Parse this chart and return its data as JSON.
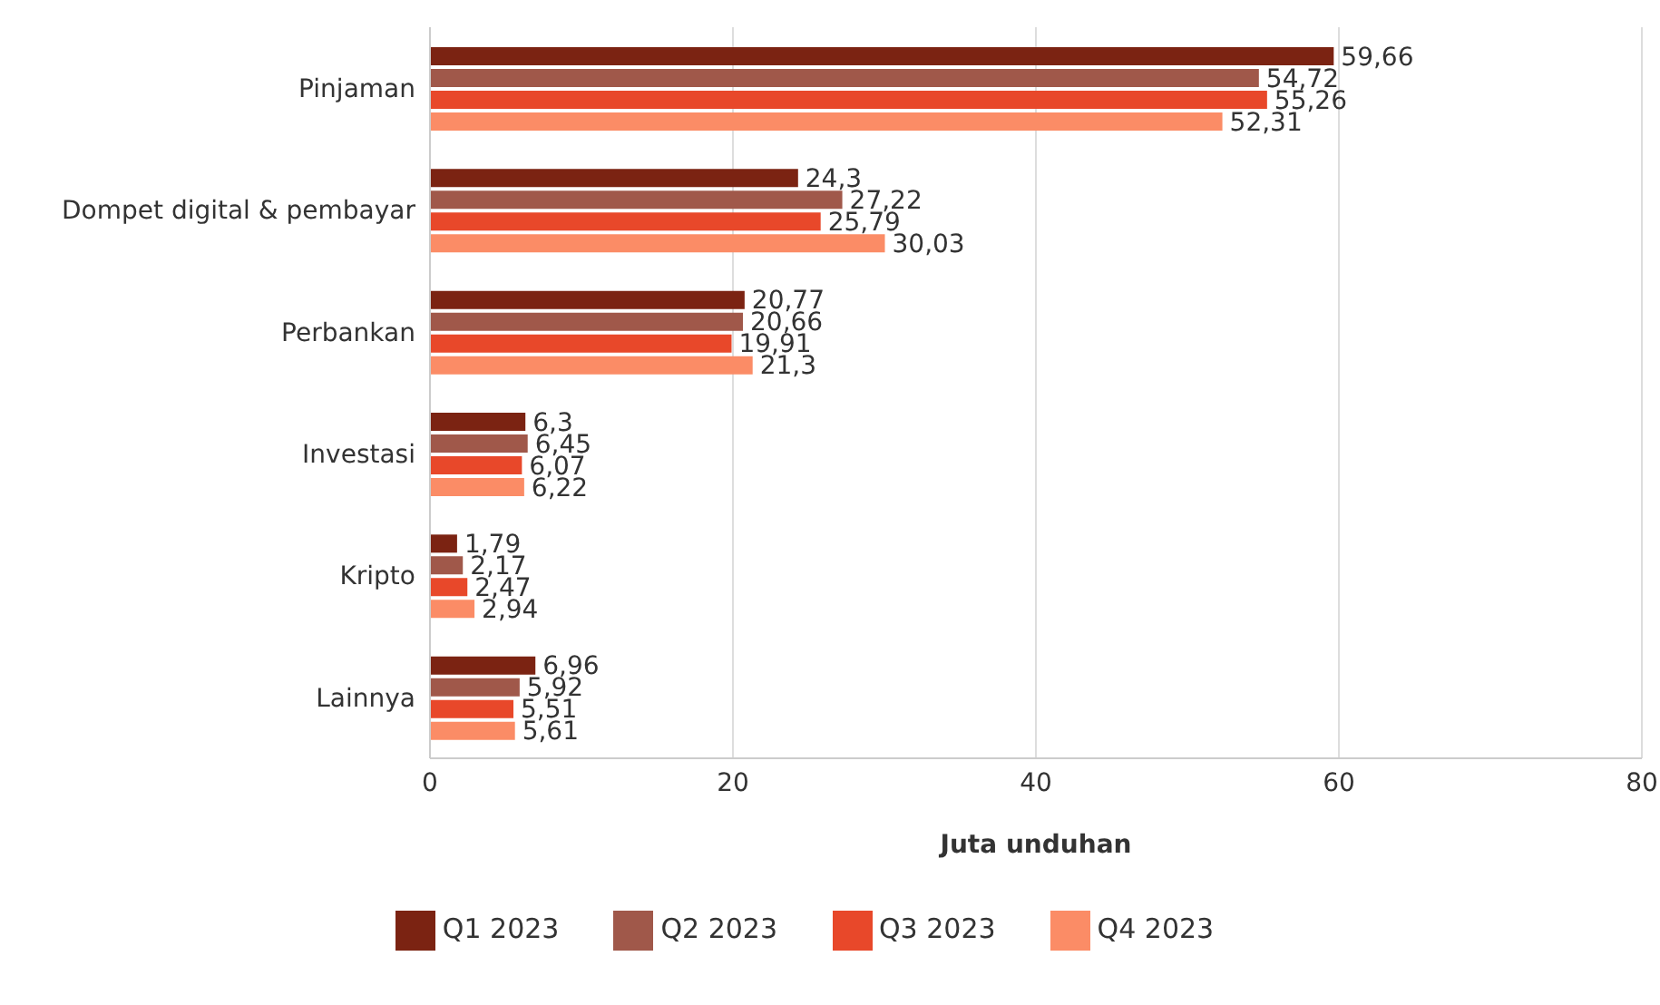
{
  "chart_data": {
    "type": "bar",
    "orientation": "horizontal",
    "xlabel": "Juta unduhan",
    "categories": [
      "Pinjaman",
      "Dompet digital & pembayar",
      "Perbankan",
      "Investasi",
      "Kripto",
      "Lainnya"
    ],
    "series": [
      {
        "name": "Q1 2023",
        "color": "#7b2312",
        "values": [
          59.66,
          24.3,
          20.77,
          6.3,
          1.79,
          6.96
        ],
        "value_labels": [
          "59,66",
          "24,3",
          "20,77",
          "6,3",
          "1,79",
          "6,96"
        ]
      },
      {
        "name": "Q2 2023",
        "color": "#a0584a",
        "values": [
          54.72,
          27.22,
          20.66,
          6.45,
          2.17,
          5.92
        ],
        "value_labels": [
          "54,72",
          "27,22",
          "20,66",
          "6,45",
          "2,17",
          "5,92"
        ]
      },
      {
        "name": "Q3 2023",
        "color": "#e8482a",
        "values": [
          55.26,
          25.79,
          19.91,
          6.07,
          2.47,
          5.51
        ],
        "value_labels": [
          "55,26",
          "25,79",
          "19,91",
          "6,07",
          "2,47",
          "5,51"
        ]
      },
      {
        "name": "Q4 2023",
        "color": "#fb8c66",
        "values": [
          52.31,
          30.03,
          21.3,
          6.22,
          2.94,
          5.61
        ],
        "value_labels": [
          "52,31",
          "30,03",
          "21,3",
          "6,22",
          "2,94",
          "5,61"
        ]
      }
    ],
    "xlim": [
      0,
      80
    ],
    "xticks": [
      0,
      20,
      40,
      60,
      80
    ],
    "grid": "x",
    "legend": "bottom"
  }
}
